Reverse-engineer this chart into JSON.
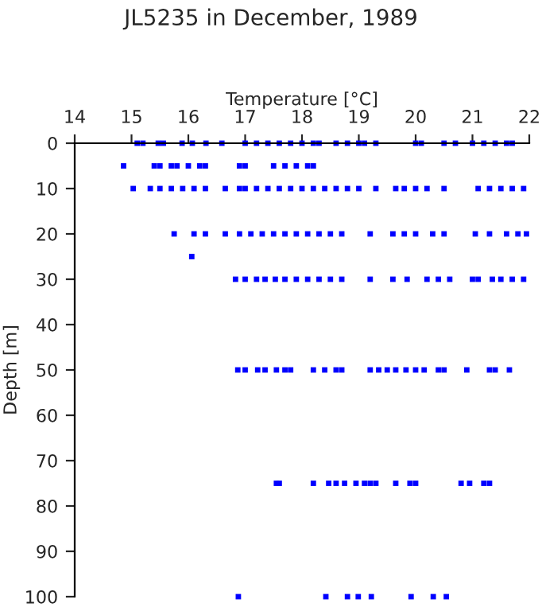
{
  "chart_data": {
    "type": "scatter",
    "title": "JL5235 in December, 1989",
    "xlabel": "Temperature [°C]",
    "ylabel": "Depth [m]",
    "xlim": [
      14,
      22
    ],
    "xticks": [
      14,
      15,
      16,
      17,
      18,
      19,
      20,
      21,
      22
    ],
    "ylim": [
      100,
      0
    ],
    "yticks": [
      0,
      10,
      20,
      30,
      40,
      50,
      60,
      70,
      80,
      90,
      100
    ],
    "marker": "square",
    "grid": false,
    "series": [
      {
        "color": "#0000ff",
        "x": [
          15.1,
          15.2,
          15.47,
          15.56,
          15.89,
          16.07,
          16.31,
          16.59,
          17.0,
          17.2,
          17.4,
          17.6,
          17.8,
          18.0,
          18.2,
          18.3,
          18.6,
          18.8,
          19.0,
          19.1,
          19.3,
          20.0,
          20.1,
          20.5,
          20.7,
          21.0,
          21.2,
          21.4,
          21.6,
          21.7,
          14.86,
          15.4,
          15.5,
          15.7,
          15.8,
          16.0,
          16.2,
          16.3,
          16.9,
          17.0,
          17.5,
          17.7,
          17.9,
          18.1,
          18.2,
          15.03,
          15.33,
          15.5,
          15.7,
          15.9,
          16.1,
          16.3,
          16.65,
          16.9,
          17.0,
          17.2,
          17.4,
          17.6,
          17.8,
          18.0,
          18.2,
          18.4,
          18.6,
          18.8,
          19.0,
          19.3,
          19.65,
          19.8,
          20.0,
          20.2,
          20.5,
          21.1,
          21.3,
          21.5,
          21.7,
          21.9,
          15.75,
          16.1,
          16.3,
          16.65,
          16.9,
          17.1,
          17.3,
          17.5,
          17.7,
          17.9,
          18.1,
          18.3,
          18.5,
          18.7,
          19.2,
          19.6,
          19.8,
          20.0,
          20.3,
          20.5,
          21.05,
          21.3,
          21.6,
          21.8,
          21.95,
          16.06,
          16.83,
          17.0,
          17.2,
          17.35,
          17.53,
          17.7,
          17.9,
          18.1,
          18.3,
          18.5,
          18.7,
          19.2,
          19.6,
          19.85,
          20.2,
          20.4,
          20.6,
          21.0,
          21.1,
          21.35,
          21.5,
          21.7,
          21.9,
          16.87,
          17.0,
          17.22,
          17.35,
          17.55,
          17.7,
          17.8,
          18.2,
          18.4,
          18.6,
          18.7,
          19.2,
          19.35,
          19.5,
          19.65,
          19.83,
          20.0,
          20.15,
          20.4,
          20.5,
          20.9,
          21.3,
          21.4,
          21.65,
          17.55,
          17.6,
          18.2,
          18.47,
          18.6,
          18.75,
          18.95,
          19.1,
          19.2,
          19.3,
          19.65,
          19.9,
          20.0,
          20.8,
          20.95,
          21.2,
          21.3,
          16.88,
          18.42,
          18.8,
          18.99,
          19.22,
          19.92,
          20.31,
          20.54
        ],
        "values": [
          0,
          0,
          0,
          0,
          0,
          0,
          0,
          0,
          0,
          0,
          0,
          0,
          0,
          0,
          0,
          0,
          0,
          0,
          0,
          0,
          0,
          0,
          0,
          0,
          0,
          0,
          0,
          0,
          0,
          0,
          5,
          5,
          5,
          5,
          5,
          5,
          5,
          5,
          5,
          5,
          5,
          5,
          5,
          5,
          5,
          10,
          10,
          10,
          10,
          10,
          10,
          10,
          10,
          10,
          10,
          10,
          10,
          10,
          10,
          10,
          10,
          10,
          10,
          10,
          10,
          10,
          10,
          10,
          10,
          10,
          10,
          10,
          10,
          10,
          10,
          10,
          20,
          20,
          20,
          20,
          20,
          20,
          20,
          20,
          20,
          20,
          20,
          20,
          20,
          20,
          20,
          20,
          20,
          20,
          20,
          20,
          20,
          20,
          20,
          20,
          20,
          25,
          30,
          30,
          30,
          30,
          30,
          30,
          30,
          30,
          30,
          30,
          30,
          30,
          30,
          30,
          30,
          30,
          30,
          30,
          30,
          30,
          30,
          30,
          30,
          50,
          50,
          50,
          50,
          50,
          50,
          50,
          50,
          50,
          50,
          50,
          50,
          50,
          50,
          50,
          50,
          50,
          50,
          50,
          50,
          50,
          50,
          50,
          50,
          75,
          75,
          75,
          75,
          75,
          75,
          75,
          75,
          75,
          75,
          75,
          75,
          75,
          75,
          75,
          75,
          75,
          100,
          100,
          100,
          100,
          100,
          100,
          100,
          100
        ]
      }
    ]
  }
}
